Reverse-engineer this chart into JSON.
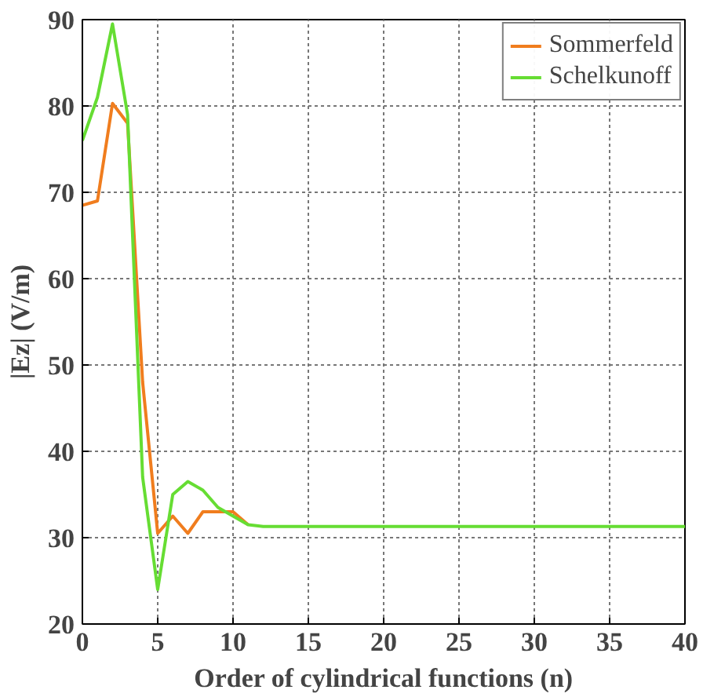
{
  "chart_data": {
    "type": "line",
    "xlabel": "Order of cylindrical functions (n)",
    "ylabel": "|Ez| (V/m)",
    "x": [
      0,
      1,
      2,
      3,
      4,
      5,
      6,
      7,
      8,
      9,
      10,
      11,
      12,
      15,
      20,
      25,
      30,
      35,
      40
    ],
    "series": [
      {
        "name": "Sommerfeld",
        "color": "#f07d1e",
        "values": [
          68.5,
          69,
          80.3,
          78,
          48,
          30.5,
          32.5,
          30.5,
          33,
          33,
          33,
          31.5,
          null,
          null,
          null,
          null,
          null,
          null,
          null
        ]
      },
      {
        "name": "Schelkunoff",
        "color": "#66dd33",
        "values": [
          76,
          81,
          89.5,
          79,
          37,
          24,
          35,
          36.5,
          35.5,
          33.5,
          32.5,
          31.5,
          31.3,
          31.3,
          31.3,
          31.3,
          31.3,
          31.3,
          31.3
        ]
      }
    ],
    "xlim": [
      0,
      40
    ],
    "xticks": [
      0,
      5,
      10,
      15,
      20,
      25,
      30,
      35,
      40
    ],
    "ylim": [
      20,
      90
    ],
    "yticks": [
      20,
      30,
      40,
      50,
      60,
      70,
      80,
      90
    ],
    "grid": true,
    "legend": "top right",
    "line_style": "solid"
  }
}
